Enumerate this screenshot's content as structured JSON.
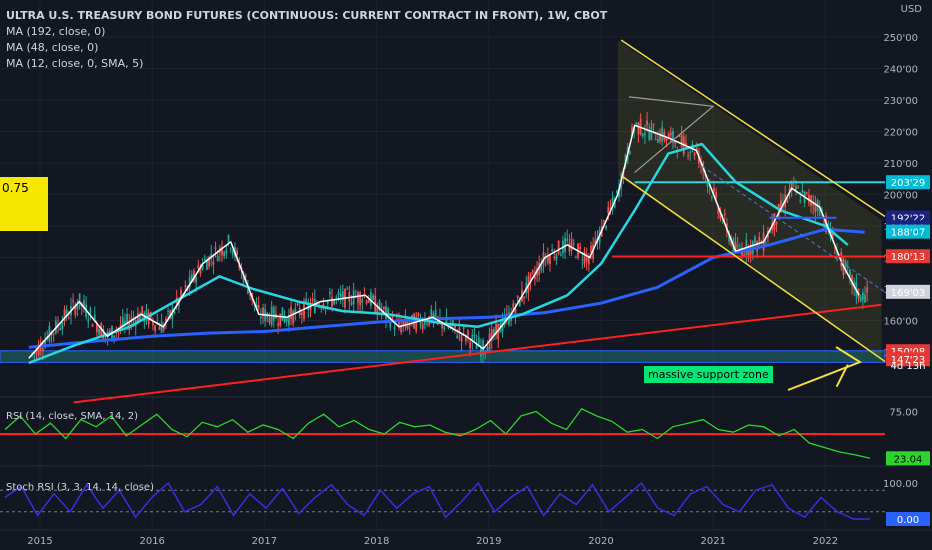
{
  "header": {
    "title": "ULTRA U.S. TREASURY BOND FUTURES (CONTINUOUS: CURRENT CONTRACT IN FRONT), 1W, CBOT",
    "indicators": [
      "MA (192, close, 0)",
      "MA (48, close, 0)",
      "MA (12, close, 0, SMA, 5)"
    ],
    "currency": "USD"
  },
  "left_tag": "0.75",
  "annotation": "massive support zone",
  "colors": {
    "background": "#131722",
    "up": "#26a69a",
    "down": "#ef5350",
    "ma192": "#2962ff",
    "ma48": "#26d7e0",
    "ma12": "#ffffff",
    "channel": "#f0e040",
    "support_line": "#ff2020",
    "rsi": "#2bd62b",
    "stoch": "#3a2ee0"
  },
  "chart_data": [
    {
      "type": "line",
      "title": "ULTRA U.S. TREASURY BOND FUTURES (CONTINUOUS: CURRENT CONTRACT IN FRONT), 1W, CBOT",
      "x_ticks": [
        "2015",
        "2016",
        "2017",
        "2018",
        "2019",
        "2020",
        "2021",
        "2022"
      ],
      "y_ticks": [
        "250'00",
        "240'00",
        "230'00",
        "220'00",
        "210'00",
        "200'00",
        "190'00",
        "180'00",
        "170'00",
        "160'00",
        "150'00"
      ],
      "ylim": [
        143,
        253
      ],
      "price_labels": [
        {
          "value": 203.9,
          "text": "203'29",
          "color": "#00bcd4"
        },
        {
          "value": 192.7,
          "text": "192'22",
          "color": "#1a237e"
        },
        {
          "value": 189.6,
          "text": "189'19",
          "color": "#1a237e"
        },
        {
          "value": 188.2,
          "text": "188'07",
          "color": "#00bcd4"
        },
        {
          "value": 180.4,
          "text": "180'13",
          "color": "#e53935"
        },
        {
          "value": 169.1,
          "text": "169'03",
          "color": "#d1d4dc"
        },
        {
          "value": 150.25,
          "text": "150'08",
          "color": "#e53935"
        },
        {
          "value": 147.7,
          "text": "147'23",
          "color": "#e53935"
        }
      ],
      "countdown": "4d 13h",
      "series": [
        {
          "name": "MA (192, close, 0)",
          "x": [
            2014.9,
            2015.5,
            2016.0,
            2016.5,
            2017.0,
            2017.5,
            2018.0,
            2018.5,
            2019.0,
            2019.5,
            2020.0,
            2020.5,
            2021.0,
            2021.5,
            2022.0,
            2022.35
          ],
          "values": [
            151.5,
            153.5,
            155.0,
            156.0,
            156.5,
            158.0,
            159.5,
            160.5,
            161.0,
            162.5,
            165.5,
            170.5,
            180.0,
            184.0,
            189.0,
            188.0
          ]
        },
        {
          "name": "MA (48, close, 0)",
          "x": [
            2014.9,
            2015.3,
            2015.8,
            2016.2,
            2016.6,
            2016.9,
            2017.3,
            2017.7,
            2018.1,
            2018.6,
            2018.9,
            2019.3,
            2019.7,
            2020.0,
            2020.3,
            2020.6,
            2020.9,
            2021.2,
            2021.6,
            2022.0,
            2022.2
          ],
          "values": [
            146.5,
            152.0,
            158.0,
            166.0,
            174.0,
            170.0,
            166.0,
            163.0,
            162.0,
            159.0,
            158.0,
            162.0,
            168.0,
            178.0,
            195.0,
            213.0,
            216.0,
            204.0,
            195.0,
            190.0,
            184.0
          ]
        },
        {
          "name": "MA (12, close, 0, SMA, 5)",
          "x": [
            2014.9,
            2015.1,
            2015.35,
            2015.6,
            2015.9,
            2016.1,
            2016.45,
            2016.7,
            2016.95,
            2017.2,
            2017.5,
            2017.9,
            2018.2,
            2018.5,
            2018.8,
            2018.95,
            2019.2,
            2019.5,
            2019.7,
            2019.9,
            2020.15,
            2020.3,
            2020.6,
            2020.85,
            2021.2,
            2021.45,
            2021.7,
            2021.95,
            2022.15,
            2022.3
          ],
          "values": [
            148.0,
            156.0,
            166.0,
            155.0,
            162.0,
            158.0,
            178.0,
            185.0,
            162.0,
            161.0,
            166.0,
            168.0,
            158.0,
            161.0,
            155.0,
            151.0,
            162.0,
            180.0,
            184.0,
            180.0,
            200.0,
            222.0,
            218.0,
            214.0,
            182.0,
            185.0,
            202.0,
            196.0,
            178.0,
            168.0
          ]
        }
      ]
    },
    {
      "type": "line",
      "label": "RSI (14, close, SMA, 14, 2)",
      "y_ticks": [
        "75.00"
      ],
      "last_value": "23.04",
      "series": [
        {
          "values": [
            55,
            70,
            50,
            62,
            45,
            66,
            58,
            70,
            48,
            60,
            72,
            55,
            47,
            63,
            58,
            66,
            52,
            60,
            55,
            45,
            62,
            72,
            58,
            65,
            55,
            50,
            63,
            58,
            60,
            52,
            48,
            55,
            65,
            50,
            70,
            75,
            62,
            55,
            78,
            70,
            64,
            52,
            55,
            45,
            58,
            62,
            66,
            55,
            52,
            60,
            58,
            48,
            55,
            40,
            35,
            30,
            27,
            23
          ]
        }
      ]
    },
    {
      "type": "line",
      "label": "Stoch RSI (3, 3, 14, 14, close)",
      "y_ticks": [
        "100.00",
        "0.00"
      ],
      "last_value": "0.00",
      "series": [
        {
          "values": [
            60,
            90,
            10,
            70,
            20,
            95,
            30,
            80,
            5,
            60,
            100,
            20,
            40,
            90,
            10,
            70,
            30,
            85,
            15,
            60,
            95,
            40,
            10,
            80,
            30,
            70,
            90,
            5,
            50,
            100,
            20,
            60,
            90,
            10,
            70,
            40,
            95,
            20,
            60,
            100,
            30,
            10,
            70,
            90,
            40,
            20,
            80,
            95,
            30,
            5,
            60,
            20,
            0,
            0
          ]
        }
      ]
    }
  ]
}
